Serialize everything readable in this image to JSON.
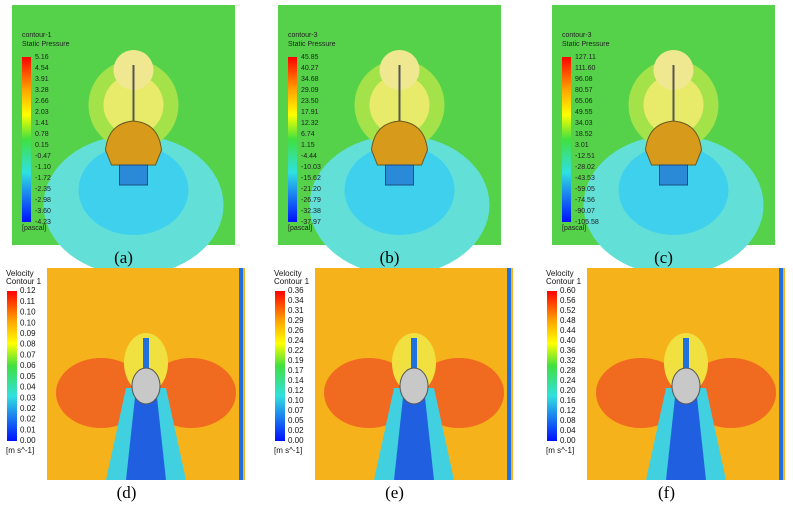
{
  "panels": [
    {
      "label": "(a)",
      "title": [
        "contour-1",
        "Static Pressure"
      ],
      "unit": "[pascal]",
      "values": [
        "5.16",
        "4.54",
        "3.91",
        "3.28",
        "2.66",
        "2.03",
        "1.41",
        "0.78",
        "0.15",
        "-0.47",
        "-1.10",
        "-1.72",
        "-2.35",
        "-2.98",
        "-3.60",
        "-4.23"
      ]
    },
    {
      "label": "(b)",
      "title": [
        "contour-3",
        "Static Pressure"
      ],
      "unit": "[pascal]",
      "values": [
        "45.85",
        "40.27",
        "34.68",
        "29.09",
        "23.50",
        "17.91",
        "12.32",
        "6.74",
        "1.15",
        "-4.44",
        "-10.03",
        "-15.62",
        "-21.20",
        "-26.79",
        "-32.38",
        "-37.97"
      ]
    },
    {
      "label": "(c)",
      "title": [
        "contour-3",
        "Static Pressure"
      ],
      "unit": "[pascal]",
      "values": [
        "127.11",
        "111.60",
        "96.08",
        "80.57",
        "65.06",
        "49.55",
        "34.03",
        "18.52",
        "3.01",
        "-12.51",
        "-28.02",
        "-43.53",
        "-59.05",
        "-74.56",
        "-90.07",
        "-105.58"
      ]
    },
    {
      "label": "(d)",
      "title": [
        "Velocity",
        "Contour 1"
      ],
      "unit": "[m s^-1]",
      "values": [
        "0.12",
        "0.11",
        "0.10",
        "0.10",
        "0.09",
        "0.08",
        "0.07",
        "0.06",
        "0.05",
        "0.04",
        "0.03",
        "0.02",
        "0.02",
        "0.01",
        "0.00"
      ]
    },
    {
      "label": "(e)",
      "title": [
        "Velocity",
        "Contour 1"
      ],
      "unit": "[m s^-1]",
      "values": [
        "0.36",
        "0.34",
        "0.31",
        "0.29",
        "0.26",
        "0.24",
        "0.22",
        "0.19",
        "0.17",
        "0.14",
        "0.12",
        "0.10",
        "0.07",
        "0.05",
        "0.02",
        "0.00"
      ]
    },
    {
      "label": "(f)",
      "title": [
        "Velocity",
        "Contour 1"
      ],
      "unit": "[m s^-1]",
      "values": [
        "0.60",
        "0.56",
        "0.52",
        "0.48",
        "0.44",
        "0.40",
        "0.36",
        "0.32",
        "0.28",
        "0.24",
        "0.20",
        "0.16",
        "0.12",
        "0.08",
        "0.04",
        "0.00"
      ]
    }
  ]
}
